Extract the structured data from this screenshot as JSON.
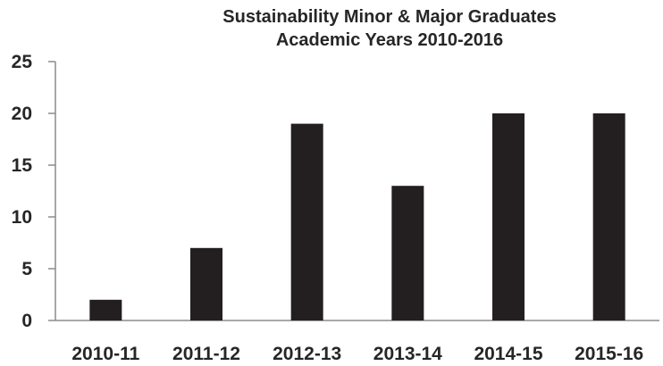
{
  "chart_data": {
    "type": "bar",
    "title_lines": [
      "Sustainability Minor & Major Graduates",
      "Academic Years 2010-2016"
    ],
    "categories": [
      "2010-11",
      "2011-12",
      "2012-13",
      "2013-14",
      "2014-15",
      "2015-16"
    ],
    "values": [
      2,
      7,
      19,
      13,
      20,
      20
    ],
    "y_ticks": [
      "0",
      "5",
      "10",
      "15",
      "20",
      "25"
    ],
    "ylim": [
      0,
      25
    ],
    "xlabel": "",
    "ylabel": "",
    "grid": false,
    "legend": "none",
    "bar_color": "#231f20",
    "axis_color": "#8c8c8c",
    "text_color": "#262626"
  }
}
